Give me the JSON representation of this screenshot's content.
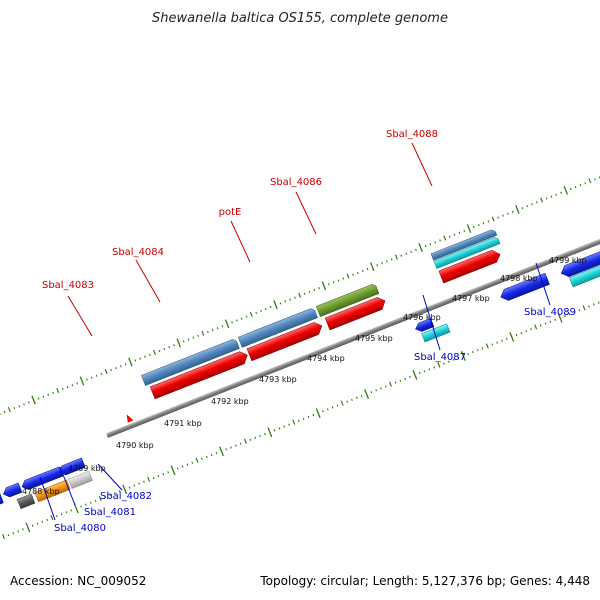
{
  "title": "Shewanella baltica OS155, complete genome",
  "footer": {
    "accession": "Accession: NC_009052",
    "summary": "Topology: circular; Length: 5,127,376 bp; Genes: 4,448"
  },
  "colors": {
    "backbone": "#8a8a8a",
    "tick": "#2f7d14",
    "label_forward": "#cc0000",
    "label_reverse": "#0000cc"
  },
  "kbp_labels": [
    "4788 kbp",
    "4789 kbp",
    "4790 kbp",
    "4791 kbp",
    "4792 kbp",
    "4793 kbp",
    "4794 kbp",
    "4795 kbp",
    "4796 kbp",
    "4797 kbp",
    "4798 kbp",
    "4799 kbp"
  ],
  "genes_forward": [
    {
      "label": "Sbal_4083"
    },
    {
      "label": "Sbal_4084"
    },
    {
      "label": "potE"
    },
    {
      "label": "Sbal_4086"
    },
    {
      "label": "Sbal_4088"
    }
  ],
  "genes_reverse": [
    {
      "label": "Sbal_4080"
    },
    {
      "label": "Sbal_4081"
    },
    {
      "label": "Sbal_4082"
    },
    {
      "label": "Sbal_4087"
    },
    {
      "label": "Sbal_4089"
    }
  ]
}
